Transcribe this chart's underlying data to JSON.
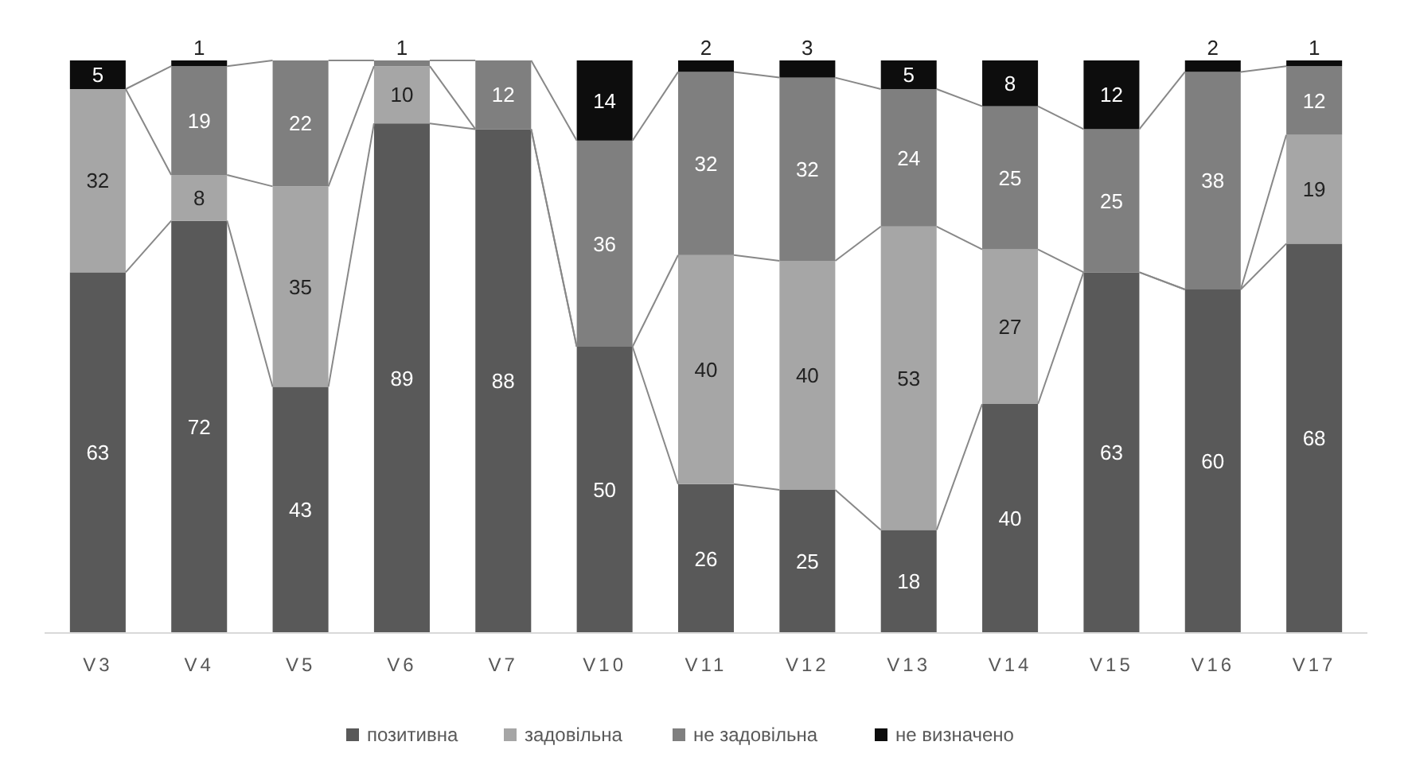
{
  "chart_data": {
    "type": "bar",
    "stacked": true,
    "data_labels": true,
    "tick_labels": "x",
    "legend": "bottom",
    "grid": false,
    "categories": [
      "V3",
      "V4",
      "V5",
      "V6",
      "V7",
      "V10",
      "V11",
      "V12",
      "V13",
      "V14",
      "V15",
      "V16",
      "V17"
    ],
    "series": [
      {
        "name": "позитивна",
        "color": "#595959",
        "values": [
          63,
          72,
          43,
          89,
          88,
          50,
          26,
          25,
          18,
          40,
          63,
          60,
          68
        ]
      },
      {
        "name": "задовільна",
        "color": "#a6a6a6",
        "values": [
          32,
          8,
          35,
          10,
          null,
          null,
          40,
          40,
          53,
          27,
          null,
          null,
          19
        ]
      },
      {
        "name": "не задовільна",
        "color": "#7f7f7f",
        "values": [
          null,
          19,
          22,
          1,
          12,
          36,
          32,
          32,
          24,
          25,
          25,
          38,
          12
        ]
      },
      {
        "name": "не визначено",
        "color": "#0d0d0d",
        "values": [
          5,
          1,
          null,
          null,
          null,
          14,
          2,
          3,
          5,
          8,
          12,
          2,
          1
        ]
      }
    ]
  }
}
